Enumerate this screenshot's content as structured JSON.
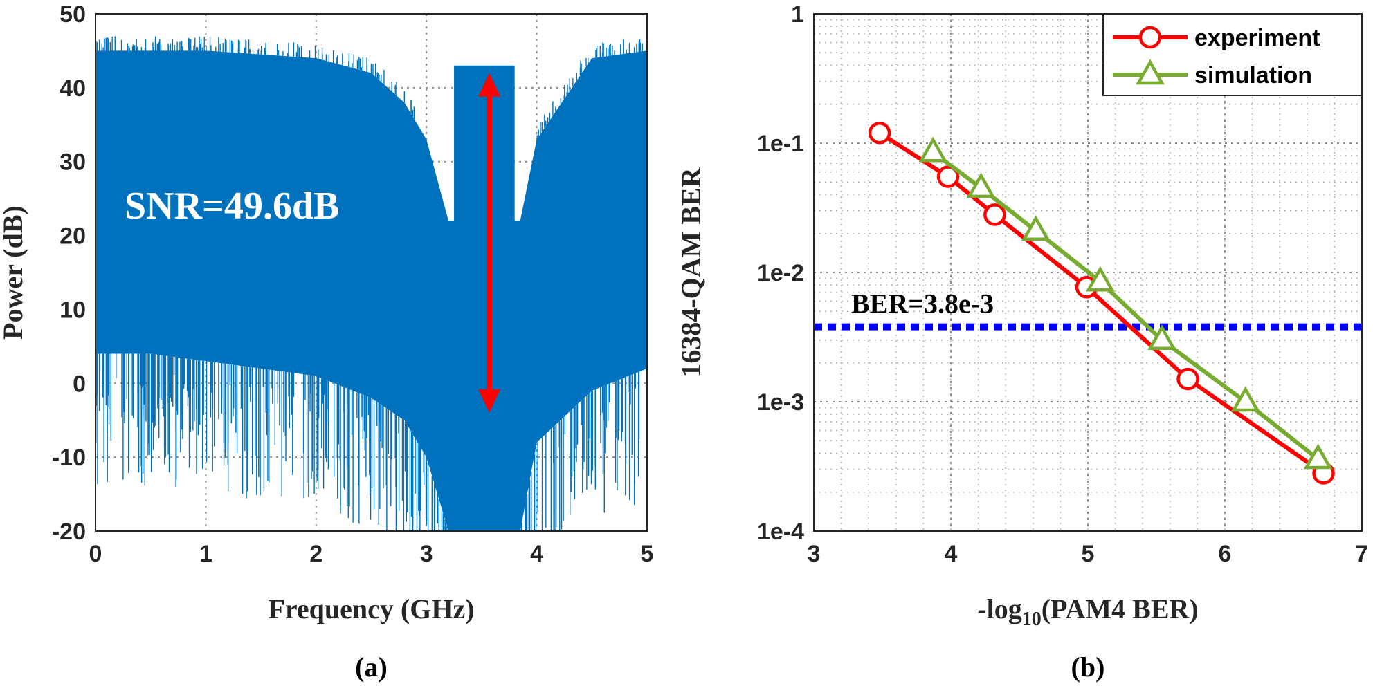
{
  "chart_data": [
    {
      "type": "line",
      "panel_label": "(a)",
      "xlabel": "Frequency (GHz)",
      "ylabel": "Power (dB)",
      "xlim": [
        0,
        5
      ],
      "ylim": [
        -20,
        50
      ],
      "xticks": [
        "0",
        "1",
        "2",
        "3",
        "4",
        "5"
      ],
      "yticks": [
        "-20",
        "-10",
        "0",
        "10",
        "20",
        "30",
        "40",
        "50"
      ],
      "grid": true,
      "color": "#0072bd",
      "spectrum_envelope": {
        "x": [
          0.0,
          0.5,
          1.0,
          1.5,
          2.0,
          2.5,
          2.8,
          3.0,
          3.2,
          3.25,
          3.8,
          3.85,
          4.0,
          4.5,
          5.0
        ],
        "top": [
          45,
          45,
          45,
          44.5,
          44,
          42,
          38,
          33,
          22,
          22,
          22,
          22,
          33,
          44,
          45
        ],
        "bottom": [
          4,
          4,
          3,
          2,
          1,
          -2,
          -5,
          -10,
          -20,
          -20,
          -20,
          -20,
          -8,
          -1,
          2
        ]
      },
      "notch_band": {
        "x": [
          3.25,
          3.8
        ],
        "top": 43
      },
      "arrow": {
        "x": 3.57,
        "y_top": 42,
        "y_bottom": -4
      },
      "annotation": "SNR=49.6dB"
    },
    {
      "type": "line",
      "panel_label": "(b)",
      "xlabel": "-log10(PAM4 BER)",
      "ylabel": "16384-QAM BER",
      "xlim": [
        3,
        7
      ],
      "ylim": [
        0.0001,
        1
      ],
      "yscale": "log",
      "xticks": [
        "3",
        "4",
        "5",
        "6",
        "7"
      ],
      "yticks": [
        "1e-4",
        "1e-3",
        "1e-2",
        "1e-1",
        "1"
      ],
      "grid": true,
      "legend_position": "top-right",
      "series": [
        {
          "name": "experiment",
          "color": "#ff0000",
          "marker": "circle",
          "x": [
            3.48,
            3.98,
            4.32,
            4.99,
            5.73,
            6.72
          ],
          "y": [
            0.12,
            0.055,
            0.028,
            0.0077,
            0.0015,
            0.00028
          ]
        },
        {
          "name": "simulation",
          "color": "#77ac30",
          "marker": "triangle",
          "x": [
            3.87,
            4.22,
            4.62,
            5.09,
            5.54,
            6.15,
            6.68
          ],
          "y": [
            0.085,
            0.045,
            0.021,
            0.0085,
            0.003,
            0.001,
            0.00036
          ]
        }
      ],
      "threshold": {
        "y": 0.0038,
        "label": "BER=3.8e-3",
        "color": "#0000ff"
      }
    }
  ]
}
